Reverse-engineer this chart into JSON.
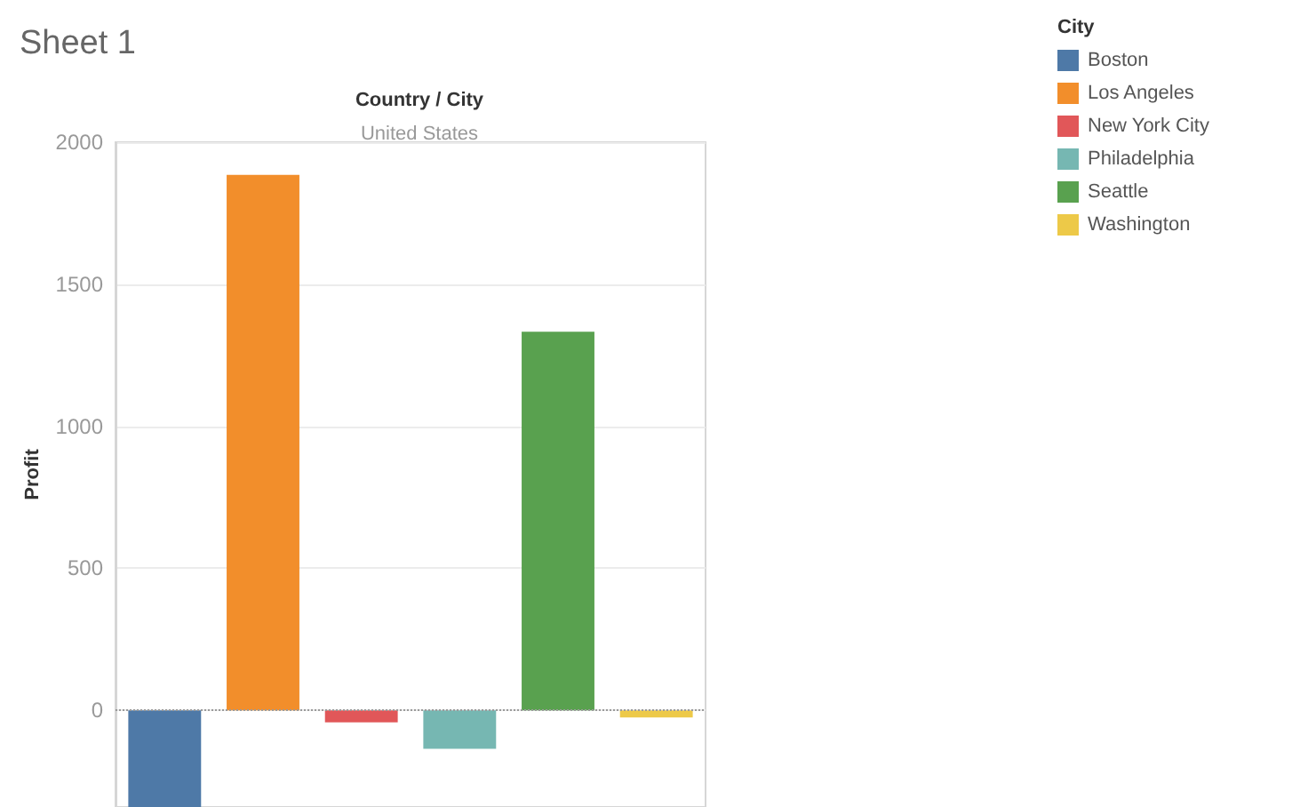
{
  "chart_data": {
    "type": "bar",
    "title": "Sheet 1",
    "xlabel": "Country / City",
    "ylabel": "Profit",
    "legend_title": "City",
    "annotations": [
      "United States"
    ],
    "categories": [
      null,
      null,
      null,
      null,
      null,
      null
    ],
    "series": [
      {
        "name": "Boston",
        "color": "#4e79a7",
        "values": [
          -340,
          null,
          null,
          null,
          null,
          null
        ]
      },
      {
        "name": "Los Angeles",
        "color": "#f28e2b",
        "values": [
          null,
          1885,
          null,
          null,
          null,
          null
        ]
      },
      {
        "name": "New York City",
        "color": "#e15759",
        "values": [
          null,
          null,
          -42,
          null,
          null,
          null
        ]
      },
      {
        "name": "Philadelphia",
        "color": "#76b7b2",
        "values": [
          null,
          null,
          null,
          -135,
          null,
          null
        ]
      },
      {
        "name": "Seattle",
        "color": "#59a14f",
        "values": [
          null,
          null,
          null,
          null,
          1333,
          null
        ]
      },
      {
        "name": "Washington",
        "color": "#edc948",
        "values": [
          null,
          null,
          null,
          null,
          null,
          -25
        ]
      }
    ],
    "ref_lines": [
      {
        "axis": "y",
        "value": 0,
        "color": "#9a9a9a",
        "line_style": "dotted"
      }
    ],
    "ylim": [
      -340,
      2000
    ],
    "yticks": [
      0,
      500,
      1000,
      1500,
      2000
    ],
    "grid": "y",
    "legend": "top right",
    "tick_labels": "y"
  }
}
